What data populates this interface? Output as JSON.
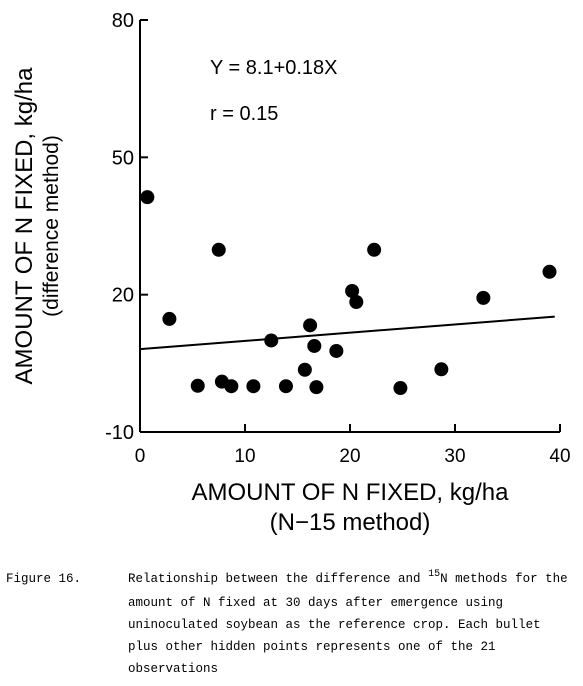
{
  "chart_data": {
    "type": "scatter",
    "annotations": [
      "Y = 8.1+0.18X",
      "r = 0.15"
    ],
    "xlabel": [
      "AMOUNT OF N FIXED, kg/ha",
      "(N−15 method)"
    ],
    "ylabel": [
      "AMOUNT OF N FIXED, kg/ha",
      "(difference method)"
    ],
    "xlim": [
      0,
      40
    ],
    "ylim": [
      -10,
      80
    ],
    "xticks": [
      0,
      10,
      20,
      30,
      40
    ],
    "yticks": [
      -10,
      20,
      50,
      80
    ],
    "color": "#000000",
    "x": [
      0.7,
      2.8,
      7.5,
      5.5,
      7.8,
      8.7,
      10.8,
      12.5,
      13.9,
      15.7,
      16.2,
      16.6,
      16.8,
      18.7,
      20.2,
      20.6,
      22.3,
      24.8,
      28.7,
      32.7,
      39.0
    ],
    "values": [
      41.3,
      14.7,
      29.8,
      0.1,
      1.0,
      0.0,
      0.0,
      10.0,
      0.0,
      3.6,
      13.3,
      8.8,
      -0.2,
      7.7,
      20.8,
      18.4,
      29.8,
      -0.4,
      3.7,
      19.3,
      25.0
    ],
    "fit_line": {
      "x": [
        0,
        39.5
      ],
      "values": [
        8.1,
        15.2
      ]
    }
  },
  "caption": {
    "label": "Figure 16.",
    "first_line": [
      "Relationship between the difference and ",
      "15",
      "N methods for the"
    ],
    "lines": [
      "amount of N fixed at 30 days after emergence using",
      "uninoculated soybean as the reference crop.  Each bullet",
      "plus other hidden points represents one of the 21",
      "observations"
    ]
  }
}
